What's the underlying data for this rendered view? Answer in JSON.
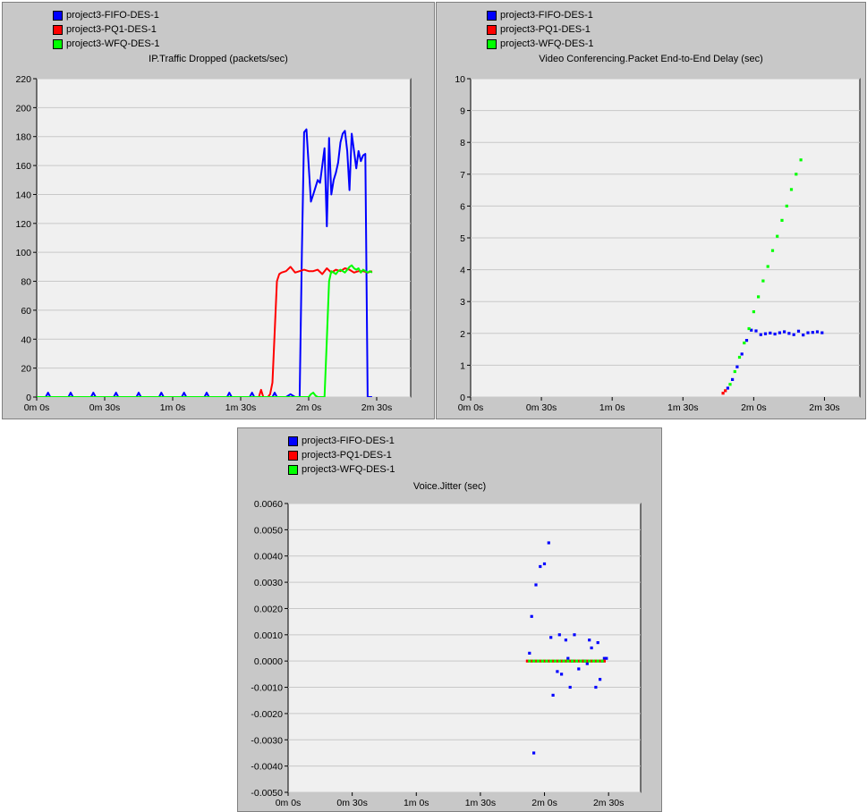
{
  "colors": {
    "fifo": "#0000ff",
    "pq": "#ff0000",
    "wfq": "#00ff00"
  },
  "chart_data": [
    {
      "type": "line",
      "title": "IP.Traffic Dropped (packets/sec)",
      "legend": [
        "project3-FIFO-DES-1",
        "project3-PQ1-DES-1",
        "project3-WFQ-DES-1"
      ],
      "xlim": [
        0,
        165
      ],
      "ylim": [
        0,
        220
      ],
      "x_ticks": [
        0,
        30,
        60,
        90,
        120,
        150
      ],
      "x_tick_labels": [
        "0m 0s",
        "0m 30s",
        "1m 0s",
        "1m 30s",
        "2m 0s",
        "2m 30s"
      ],
      "y_ticks": [
        0,
        20,
        40,
        60,
        80,
        100,
        120,
        140,
        160,
        180,
        200,
        220
      ],
      "y_tick_labels": [
        "0",
        "20",
        "40",
        "60",
        "80",
        "100",
        "120",
        "140",
        "160",
        "180",
        "200",
        "220"
      ],
      "series": [
        {
          "name": "project3-FIFO-DES-1",
          "color": "#0000ff",
          "x": [
            0,
            4,
            5,
            6,
            14,
            15,
            16,
            24,
            25,
            26,
            34,
            35,
            36,
            44,
            45,
            46,
            54,
            55,
            56,
            64,
            65,
            66,
            74,
            75,
            76,
            84,
            85,
            86,
            94,
            95,
            96,
            104,
            105,
            106,
            110,
            112,
            114,
            116,
            117,
            118,
            119,
            120,
            121,
            122,
            123,
            124,
            125,
            126,
            127,
            128,
            129,
            130,
            131,
            132,
            133,
            134,
            135,
            136,
            137,
            138,
            139,
            140,
            141,
            142,
            143,
            144,
            145,
            146,
            147,
            148
          ],
          "y": [
            0,
            0,
            3,
            0,
            0,
            3,
            0,
            0,
            3,
            0,
            0,
            3,
            0,
            0,
            3,
            0,
            0,
            3,
            0,
            0,
            3,
            0,
            0,
            3,
            0,
            0,
            3,
            0,
            0,
            3,
            0,
            0,
            3,
            0,
            0,
            2,
            0,
            0,
            100,
            183,
            185,
            160,
            135,
            140,
            145,
            150,
            148,
            160,
            172,
            118,
            179,
            140,
            150,
            155,
            162,
            176,
            182,
            184,
            170,
            143,
            182,
            170,
            158,
            170,
            163,
            167,
            168,
            0,
            0,
            0
          ]
        },
        {
          "name": "project3-PQ1-DES-1",
          "color": "#ff0000",
          "x": [
            0,
            98,
            99,
            100,
            101,
            102,
            103,
            104,
            105,
            106,
            107,
            108,
            110,
            112,
            114,
            116,
            118,
            120,
            122,
            124,
            126,
            128,
            130,
            132,
            134,
            136,
            138,
            140,
            142,
            144,
            146,
            148
          ],
          "y": [
            0,
            0,
            5,
            0,
            0,
            0,
            2,
            10,
            45,
            80,
            85,
            86,
            87,
            90,
            86,
            87,
            88,
            87,
            87,
            88,
            85,
            89,
            86,
            88,
            87,
            89,
            88,
            86,
            87,
            87,
            86,
            87
          ]
        },
        {
          "name": "project3-WFQ-DES-1",
          "color": "#00ff00",
          "x": [
            0,
            120,
            121,
            122,
            123,
            124,
            125,
            126,
            127,
            128,
            129,
            130,
            131,
            132,
            133,
            134,
            135,
            136,
            137,
            138,
            139,
            140,
            141,
            142,
            143,
            144,
            145,
            146,
            147,
            148
          ],
          "y": [
            0,
            0,
            2,
            3,
            1,
            0,
            0,
            0,
            0,
            40,
            80,
            87,
            86,
            85,
            87,
            88,
            87,
            86,
            88,
            90,
            91,
            89,
            88,
            89,
            86,
            88,
            87,
            86,
            87,
            86
          ]
        }
      ]
    },
    {
      "type": "scatter",
      "title": "Video Conferencing.Packet End-to-End Delay (sec)",
      "legend": [
        "project3-FIFO-DES-1",
        "project3-PQ1-DES-1",
        "project3-WFQ-DES-1"
      ],
      "xlim": [
        0,
        165
      ],
      "ylim": [
        0,
        10
      ],
      "x_ticks": [
        0,
        30,
        60,
        90,
        120,
        150
      ],
      "x_tick_labels": [
        "0m 0s",
        "0m 30s",
        "1m 0s",
        "1m 30s",
        "2m 0s",
        "2m 30s"
      ],
      "y_ticks": [
        0,
        1,
        2,
        3,
        4,
        5,
        6,
        7,
        8,
        9,
        10
      ],
      "y_tick_labels": [
        "0",
        "1",
        "2",
        "3",
        "4",
        "5",
        "6",
        "7",
        "8",
        "9",
        "10"
      ],
      "series": [
        {
          "name": "project3-FIFO-DES-1",
          "color": "#0000ff",
          "x": [
            109,
            111,
            113,
            115,
            117,
            119,
            121,
            123,
            125,
            127,
            129,
            131,
            133,
            135,
            137,
            139,
            141,
            143,
            145,
            147,
            149
          ],
          "y": [
            0.28,
            0.55,
            0.95,
            1.35,
            1.78,
            2.1,
            2.08,
            1.96,
            1.99,
            2.01,
            1.98,
            2.02,
            2.05,
            2.0,
            1.96,
            2.07,
            1.95,
            2.02,
            2.03,
            2.05,
            2.02
          ]
        },
        {
          "name": "project3-PQ1-DES-1",
          "color": "#ff0000",
          "x": [
            107,
            108
          ],
          "y": [
            0.12,
            0.2
          ]
        },
        {
          "name": "project3-WFQ-DES-1",
          "color": "#00ff00",
          "x": [
            110,
            112,
            114,
            116,
            118,
            120,
            122,
            124,
            126,
            128,
            130,
            132,
            134,
            136,
            138,
            140
          ],
          "y": [
            0.4,
            0.8,
            1.25,
            1.7,
            2.15,
            2.68,
            3.15,
            3.65,
            4.1,
            4.6,
            5.05,
            5.55,
            6.0,
            6.52,
            7.0,
            7.45
          ]
        }
      ]
    },
    {
      "type": "scatter",
      "title": "Voice.Jitter (sec)",
      "legend": [
        "project3-FIFO-DES-1",
        "project3-PQ1-DES-1",
        "project3-WFQ-DES-1"
      ],
      "xlim": [
        0,
        165
      ],
      "ylim": [
        -0.005,
        0.006
      ],
      "x_ticks": [
        0,
        30,
        60,
        90,
        120,
        150
      ],
      "x_tick_labels": [
        "0m 0s",
        "0m 30s",
        "1m 0s",
        "1m 30s",
        "2m 0s",
        "2m 30s"
      ],
      "y_ticks": [
        -0.005,
        -0.004,
        -0.003,
        -0.002,
        -0.001,
        0,
        0.001,
        0.002,
        0.003,
        0.004,
        0.005,
        0.006
      ],
      "y_tick_labels": [
        "-0.0050",
        "-0.0040",
        "-0.0030",
        "-0.0020",
        "-0.0010",
        "0.0000",
        "0.0010",
        "0.0020",
        "0.0030",
        "0.0040",
        "0.0050",
        "0.0060"
      ],
      "series": [
        {
          "name": "project3-FIFO-DES-1",
          "color": "#0000ff",
          "x": [
            113,
            114,
            115,
            116,
            118,
            120,
            122,
            123,
            124,
            126,
            127,
            128,
            130,
            131,
            132,
            133,
            134,
            136,
            138,
            139,
            140,
            141,
            142,
            144,
            145,
            146,
            147,
            148,
            149
          ],
          "y": [
            0.0003,
            0.0017,
            -0.0035,
            0.0029,
            0.0036,
            0.0037,
            0.0045,
            0.0009,
            -0.0013,
            -0.0004,
            0.001,
            -0.0005,
            0.0008,
            0.0001,
            -0.001,
            0.0,
            0.001,
            -0.0003,
            0.0,
            0.0,
            -0.0001,
            0.0008,
            0.0005,
            -0.001,
            0.0007,
            -0.0007,
            0.0,
            0.0001,
            0.0001
          ]
        },
        {
          "name": "project3-PQ1-DES-1",
          "color": "#ff0000",
          "x": [
            112,
            114,
            116,
            118,
            120,
            122,
            124,
            126,
            128,
            130,
            132,
            134,
            136,
            138,
            140,
            142,
            144,
            146,
            148
          ],
          "y": [
            0,
            0,
            0,
            0,
            0,
            0,
            0,
            0,
            0,
            0,
            0,
            0,
            0,
            0,
            0,
            0,
            0,
            0,
            0
          ]
        },
        {
          "name": "project3-WFQ-DES-1",
          "color": "#00ff00",
          "x": [
            113,
            115,
            117,
            119,
            121,
            123,
            125,
            127,
            129,
            131,
            133,
            135,
            137,
            139,
            141,
            143,
            145,
            147
          ],
          "y": [
            0,
            0,
            0,
            0,
            0,
            0,
            0,
            0,
            0,
            0,
            0,
            0,
            0,
            0,
            0,
            0,
            0,
            0
          ]
        }
      ]
    }
  ]
}
